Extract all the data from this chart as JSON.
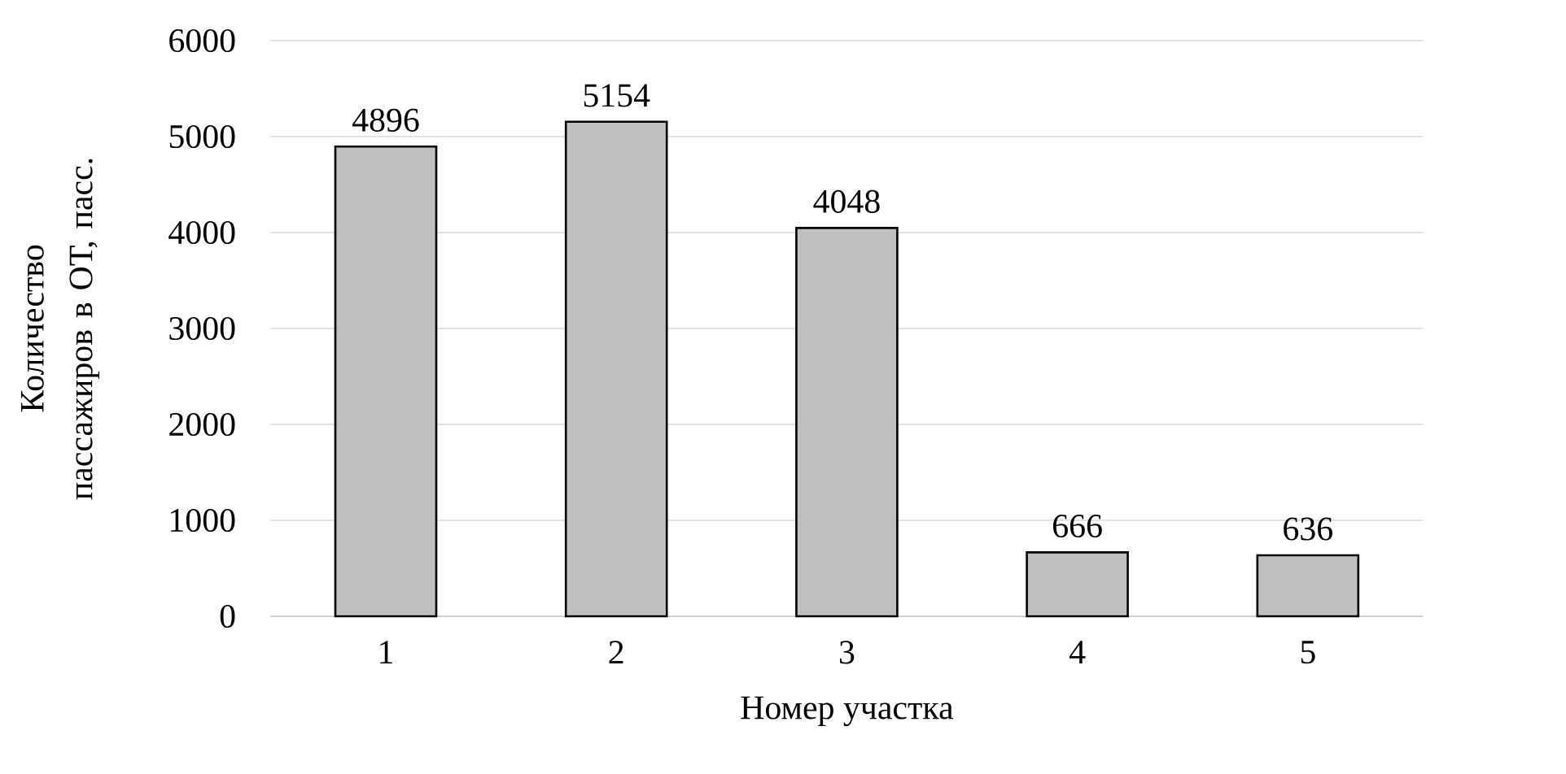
{
  "chart_data": {
    "type": "bar",
    "xlabel": "Номер участка",
    "ylabel": "Количество пассажиров в ОТ, пасс.",
    "categories": [
      "1",
      "2",
      "3",
      "4",
      "5"
    ],
    "values": [
      4896,
      5154,
      4048,
      666,
      636
    ],
    "color": "#bfbfbf",
    "ylim": [
      0,
      6000
    ],
    "yticks": [
      0,
      1000,
      2000,
      3000,
      4000,
      5000,
      6000
    ],
    "grid": "y",
    "data_labels": true
  }
}
